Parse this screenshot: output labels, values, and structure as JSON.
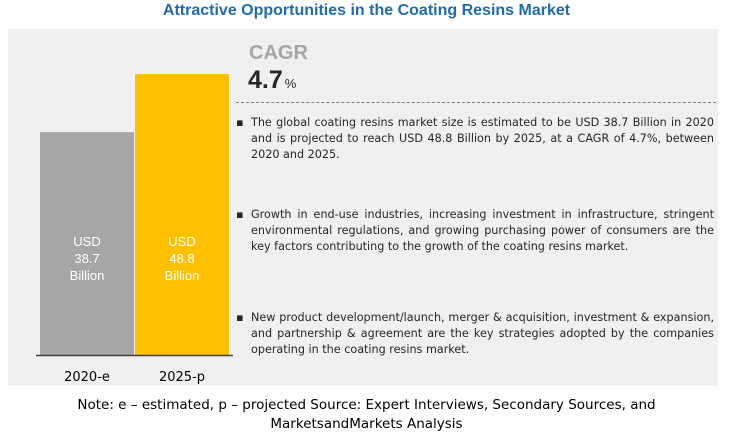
{
  "title": "Attractive Opportunities in the Coating Resins Market",
  "cagr": {
    "label": "CAGR",
    "value": "4.7",
    "unit": "%"
  },
  "chart_data": {
    "type": "bar",
    "categories": [
      "2020-e",
      "2025-p"
    ],
    "values": [
      38.7,
      48.8
    ],
    "bar_labels": [
      [
        "USD",
        "38.7",
        "Billion"
      ],
      [
        "USD",
        "48.8",
        "Billion"
      ]
    ],
    "colors": [
      "#a6a6a6",
      "#ffc000"
    ],
    "ylim": [
      0,
      48.8
    ],
    "title": "",
    "xlabel": "",
    "ylabel": ""
  },
  "bullets": [
    "The global coating resins market size is estimated to be USD 38.7 Billion in 2020 and is projected to reach USD 48.8 Billion by 2025, at a CAGR of 4.7%, between 2020 and 2025.",
    "Growth in end-use industries, increasing investment in infrastructure, stringent environmental regulations, and growing purchasing power of consumers are the key factors contributing to the growth of the coating resins market.",
    "New product development/launch, merger & acquisition, investment & expansion, and partnership & agreement are the key strategies adopted by the companies operating in the coating resins market."
  ],
  "bullet_symbol": "▪",
  "footnote": "Note: e – estimated, p – projected Source: Expert Interviews, Secondary Sources, and MarketsandMarkets Analysis"
}
